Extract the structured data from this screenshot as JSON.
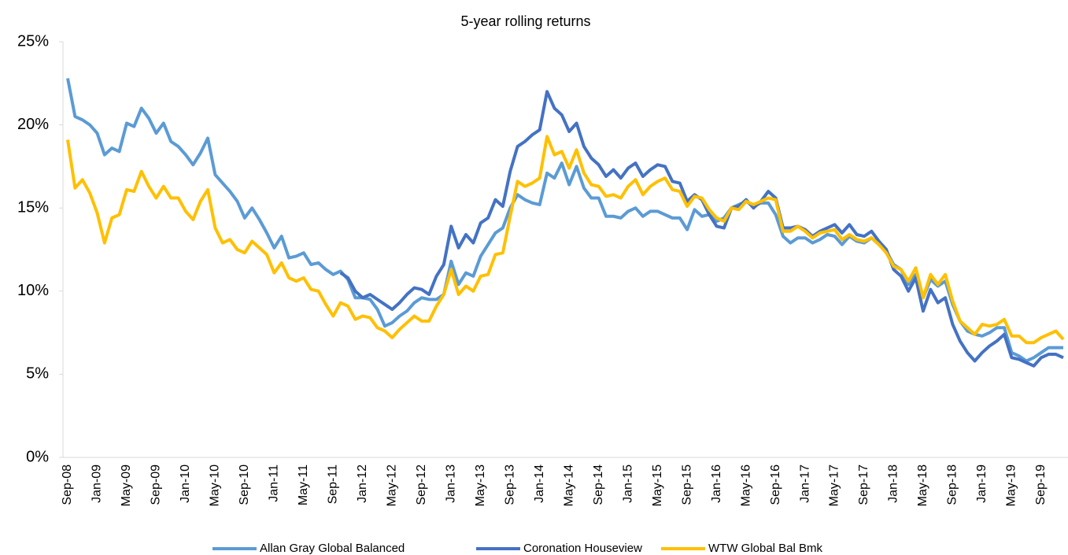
{
  "chart_data": {
    "type": "line",
    "title": "5-year rolling returns",
    "categories": [
      "Sep-08",
      null,
      null,
      null,
      "Jan-09",
      null,
      null,
      null,
      "May-09",
      null,
      null,
      null,
      "Sep-09",
      null,
      null,
      null,
      "Jan-10",
      null,
      null,
      null,
      "May-10",
      null,
      null,
      null,
      "Sep-10",
      null,
      null,
      null,
      "Jan-11",
      null,
      null,
      null,
      "May-11",
      null,
      null,
      null,
      "Sep-11",
      null,
      null,
      null,
      "Jan-12",
      null,
      null,
      null,
      "May-12",
      null,
      null,
      null,
      "Sep-12",
      null,
      null,
      null,
      "Jan-13",
      null,
      null,
      null,
      "May-13",
      null,
      null,
      null,
      "Sep-13",
      null,
      null,
      null,
      "Jan-14",
      null,
      null,
      null,
      "May-14",
      null,
      null,
      null,
      "Sep-14",
      null,
      null,
      null,
      "Jan-15",
      null,
      null,
      null,
      "May-15",
      null,
      null,
      null,
      "Sep-15",
      null,
      null,
      null,
      "Jan-16",
      null,
      null,
      null,
      "May-16",
      null,
      null,
      null,
      "Sep-16",
      null,
      null,
      null,
      "Jan-17",
      null,
      null,
      null,
      "May-17",
      null,
      null,
      null,
      "Sep-17",
      null,
      null,
      null,
      "Jan-18",
      null,
      null,
      null,
      "May-18",
      null,
      null,
      null,
      "Sep-18",
      null,
      null,
      null,
      "Jan-19",
      null,
      null,
      null,
      "May-19",
      null,
      null,
      null,
      "Sep-19",
      null,
      null,
      null
    ],
    "series": [
      {
        "name": "Allan Gray Global Balanced",
        "color": "#5b9bd5",
        "values": [
          22.8,
          20.5,
          20.3,
          20.0,
          19.5,
          18.2,
          18.6,
          18.4,
          20.1,
          19.9,
          21.0,
          20.4,
          19.5,
          20.1,
          19.0,
          18.7,
          18.2,
          17.6,
          18.3,
          19.2,
          17.0,
          16.5,
          16.0,
          15.4,
          14.4,
          15.0,
          14.3,
          13.5,
          12.6,
          13.3,
          12.0,
          12.1,
          12.3,
          11.6,
          11.7,
          11.3,
          11.0,
          11.2,
          10.7,
          9.6,
          9.6,
          9.5,
          8.9,
          7.9,
          8.1,
          8.5,
          8.8,
          9.3,
          9.6,
          9.5,
          9.5,
          9.8,
          11.8,
          10.4,
          11.1,
          10.9,
          12.1,
          12.8,
          13.5,
          13.8,
          15.0,
          15.8,
          15.5,
          15.3,
          15.2,
          17.1,
          16.8,
          17.7,
          16.4,
          17.5,
          16.2,
          15.6,
          15.6,
          14.5,
          14.5,
          14.4,
          14.8,
          15.0,
          14.5,
          14.8,
          14.8,
          14.6,
          14.4,
          14.4,
          13.7,
          14.9,
          14.5,
          14.6,
          14.2,
          14.4,
          15.0,
          15.2,
          15.4,
          15.1,
          15.3,
          15.3,
          14.6,
          13.3,
          12.9,
          13.2,
          13.2,
          12.9,
          13.1,
          13.4,
          13.3,
          12.8,
          13.3,
          13.0,
          12.9,
          13.2,
          12.8,
          12.4,
          11.6,
          11.3,
          10.4,
          11.0,
          9.6,
          10.7,
          10.3,
          10.6,
          9.2,
          8.2,
          7.6,
          7.4,
          7.3,
          7.5,
          7.8,
          7.8,
          6.3,
          6.1,
          5.8,
          6.0,
          6.3,
          6.6,
          6.6,
          6.6
        ]
      },
      {
        "name": "Coronation Houseview",
        "color": "#4472c4",
        "values": [
          null,
          null,
          null,
          null,
          null,
          null,
          null,
          null,
          null,
          null,
          null,
          null,
          null,
          null,
          null,
          null,
          null,
          null,
          null,
          null,
          null,
          null,
          null,
          null,
          null,
          null,
          null,
          null,
          null,
          null,
          null,
          null,
          null,
          null,
          null,
          null,
          null,
          11.1,
          10.8,
          10.0,
          9.6,
          9.8,
          9.5,
          9.2,
          8.9,
          9.3,
          9.8,
          10.2,
          10.1,
          9.8,
          10.9,
          11.6,
          13.9,
          12.6,
          13.4,
          12.9,
          14.1,
          14.4,
          15.5,
          15.1,
          17.2,
          18.7,
          19.0,
          19.4,
          19.7,
          22.0,
          21.0,
          20.6,
          19.6,
          20.1,
          18.7,
          18.0,
          17.6,
          16.9,
          17.3,
          16.8,
          17.4,
          17.7,
          16.9,
          17.3,
          17.6,
          17.5,
          16.6,
          16.5,
          15.4,
          15.8,
          15.5,
          14.6,
          13.9,
          13.8,
          15.0,
          15.1,
          15.5,
          15.0,
          15.4,
          16.0,
          15.6,
          13.8,
          13.8,
          13.9,
          13.7,
          13.3,
          13.6,
          13.8,
          14.0,
          13.5,
          14.0,
          13.4,
          13.3,
          13.6,
          13.0,
          12.5,
          11.3,
          10.9,
          10.0,
          10.8,
          8.8,
          10.1,
          9.3,
          9.6,
          8.0,
          7.0,
          6.3,
          5.8,
          6.3,
          6.7,
          7.0,
          7.4,
          6.0,
          5.9,
          5.7,
          5.5,
          6.0,
          6.2,
          6.2,
          6.0
        ]
      },
      {
        "name": "WTW Global Bal Bmk",
        "color": "#ffc000",
        "values": [
          19.1,
          16.2,
          16.7,
          15.9,
          14.7,
          12.9,
          14.4,
          14.6,
          16.1,
          16.0,
          17.2,
          16.3,
          15.6,
          16.3,
          15.6,
          15.6,
          14.8,
          14.3,
          15.4,
          16.1,
          13.8,
          12.9,
          13.1,
          12.5,
          12.3,
          13.0,
          12.6,
          12.2,
          11.1,
          11.7,
          10.8,
          10.6,
          10.8,
          10.1,
          10.0,
          9.2,
          8.5,
          9.3,
          9.1,
          8.3,
          8.5,
          8.4,
          7.8,
          7.6,
          7.2,
          7.7,
          8.1,
          8.5,
          8.2,
          8.2,
          9.1,
          9.8,
          11.3,
          9.8,
          10.3,
          10.0,
          10.9,
          11.0,
          12.2,
          12.3,
          14.5,
          16.6,
          16.3,
          16.5,
          16.8,
          19.3,
          18.2,
          18.4,
          17.4,
          18.5,
          17.1,
          16.4,
          16.3,
          15.7,
          15.8,
          15.6,
          16.3,
          16.7,
          15.8,
          16.3,
          16.6,
          16.8,
          16.1,
          16.0,
          15.1,
          15.7,
          15.6,
          14.9,
          14.4,
          14.2,
          15.0,
          14.9,
          15.4,
          15.2,
          15.4,
          15.6,
          15.5,
          13.6,
          13.6,
          13.9,
          13.6,
          13.2,
          13.5,
          13.6,
          13.7,
          13.1,
          13.4,
          13.1,
          13.0,
          13.2,
          12.8,
          12.3,
          11.5,
          11.3,
          10.6,
          11.4,
          9.6,
          11.0,
          10.4,
          11.0,
          9.4,
          8.2,
          7.8,
          7.4,
          8.0,
          7.9,
          8.0,
          8.3,
          7.3,
          7.3,
          6.9,
          6.9,
          7.2,
          7.4,
          7.6,
          7.1
        ]
      }
    ],
    "ylim": [
      0,
      25
    ],
    "yticks": [
      {
        "value": 0,
        "label": "0%"
      },
      {
        "value": 5,
        "label": "5%"
      },
      {
        "value": 10,
        "label": "10%"
      },
      {
        "value": 15,
        "label": "15%"
      },
      {
        "value": 20,
        "label": "20%"
      },
      {
        "value": 25,
        "label": "25%"
      }
    ],
    "legend": "bottom"
  }
}
